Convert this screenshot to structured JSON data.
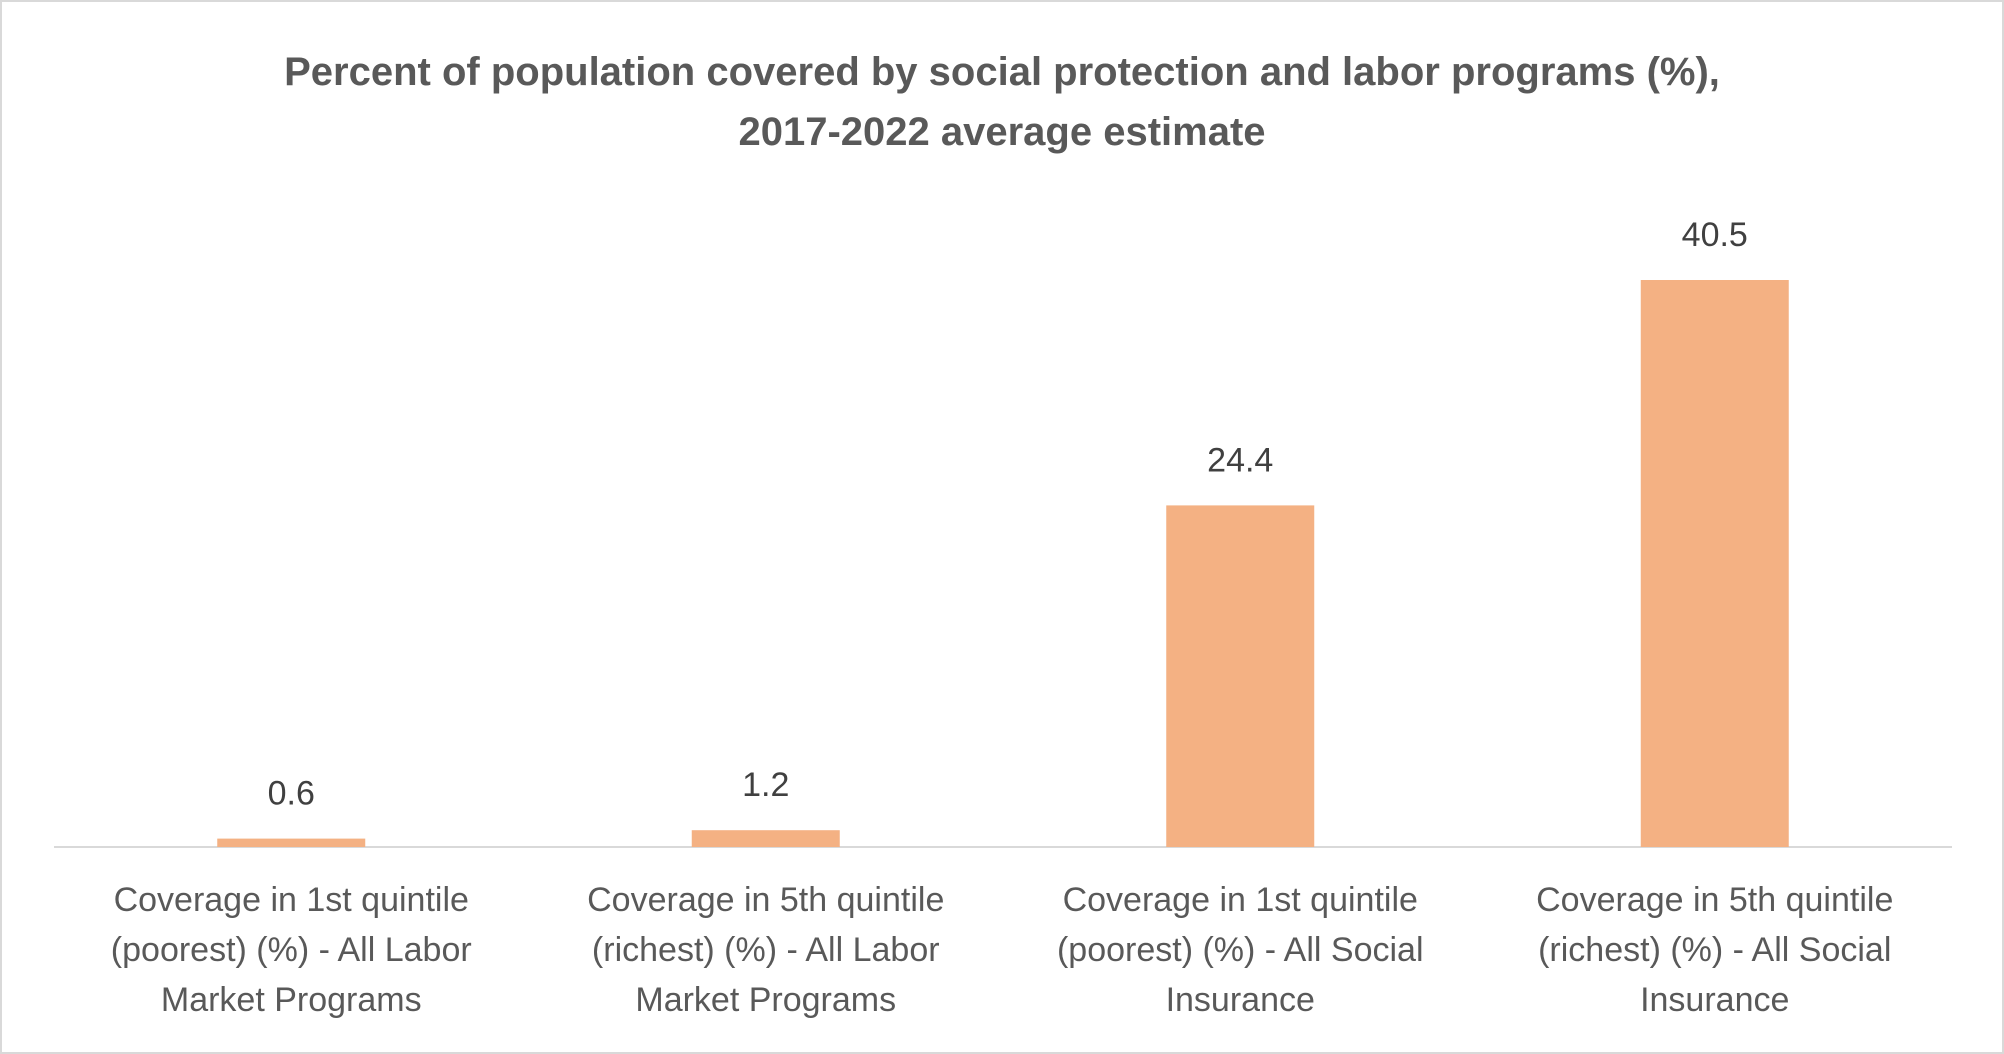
{
  "chart_data": {
    "type": "bar",
    "title": "Percent of population covered by social protection and labor programs (%), 2017-2022 average estimate",
    "title_lines": [
      "Percent of population covered by social protection and labor programs (%),",
      "2017-2022 average estimate"
    ],
    "categories": [
      "Coverage in 1st quintile (poorest) (%) - All Labor Market Programs",
      "Coverage in 5th quintile (richest) (%) - All Labor Market Programs",
      "Coverage in 1st quintile (poorest) (%) - All Social Insurance",
      "Coverage in 5th quintile (richest) (%) - All Social Insurance"
    ],
    "category_lines": [
      [
        "Coverage in 1st quintile",
        "(poorest) (%) - All Labor",
        "Market Programs"
      ],
      [
        "Coverage in 5th quintile",
        "(richest) (%) - All Labor",
        "Market Programs"
      ],
      [
        "Coverage in 1st quintile",
        "(poorest) (%) - All Social",
        "Insurance"
      ],
      [
        "Coverage in 5th quintile",
        "(richest) (%) - All Social",
        "Insurance"
      ]
    ],
    "values": [
      0.6,
      1.2,
      24.4,
      40.5
    ],
    "data_labels": [
      "0.6",
      "1.2",
      "24.4",
      "40.5"
    ],
    "xlabel": "",
    "ylabel": "",
    "ylim": [
      0,
      45
    ],
    "grid": false,
    "legend": "none",
    "colors": {
      "bar": "#f4b183",
      "axis": "#d9d9d9",
      "text": "#595959",
      "label": "#404040"
    }
  }
}
